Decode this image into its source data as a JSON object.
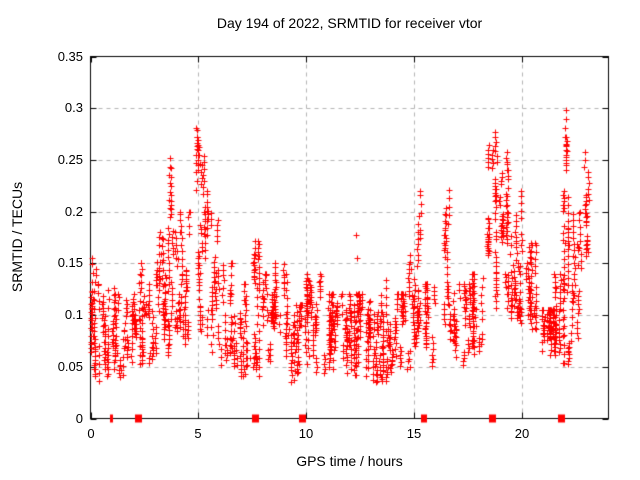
{
  "chart_data": {
    "type": "scatter",
    "title": "Day 194 of 2022, SRMTID for receiver vtor",
    "xlabel": "GPS time / hours",
    "ylabel": "SRMTID / TECUs",
    "xlim": [
      0,
      24
    ],
    "ylim": [
      0,
      0.35
    ],
    "xticks": [
      0,
      5,
      10,
      15,
      20
    ],
    "xtick_labels": [
      "0",
      "5",
      "10",
      "15",
      "20"
    ],
    "yticks": [
      0,
      0.05,
      0.1,
      0.15,
      0.2,
      0.25,
      0.3,
      0.35
    ],
    "ytick_labels": [
      "0",
      "0.05",
      "0.1",
      "0.15",
      "0.2",
      "0.25",
      "0.3",
      "0.35"
    ],
    "grid": "dashed-gray-at-major-ticks",
    "legend": "none",
    "marker": "plus-cross",
    "marker_color": "#ff0000",
    "grid_color": "#b4b4b4",
    "axis_color": "#000000",
    "background": "#ffffff",
    "seed": 194,
    "cluster_format": [
      "center_hour",
      "x_spread_hours",
      "point_count",
      "y_min_TECU",
      "y_max_TECU",
      "density_bias"
    ],
    "point_clusters": [
      [
        0.12,
        0.12,
        55,
        0.04,
        0.155,
        1.2
      ],
      [
        0.7,
        0.45,
        70,
        0.03,
        0.13,
        1.3
      ],
      [
        1.6,
        0.5,
        80,
        0.04,
        0.12,
        1.3
      ],
      [
        2.5,
        0.45,
        75,
        0.05,
        0.15,
        1.3
      ],
      [
        3.3,
        0.35,
        75,
        0.06,
        0.18,
        1.2
      ],
      [
        3.8,
        0.22,
        55,
        0.08,
        0.275,
        1.1
      ],
      [
        4.35,
        0.3,
        65,
        0.07,
        0.2,
        1.2
      ],
      [
        5.1,
        0.22,
        75,
        0.08,
        0.3,
        1.1
      ],
      [
        5.65,
        0.28,
        55,
        0.06,
        0.22,
        1.3
      ],
      [
        6.3,
        0.4,
        65,
        0.05,
        0.15,
        1.3
      ],
      [
        7.0,
        0.3,
        50,
        0.04,
        0.13,
        1.3
      ],
      [
        7.6,
        0.22,
        55,
        0.04,
        0.175,
        1.2
      ],
      [
        8.2,
        0.3,
        50,
        0.05,
        0.14,
        1.3
      ],
      [
        8.8,
        0.3,
        55,
        0.05,
        0.15,
        1.3
      ],
      [
        9.5,
        0.4,
        70,
        0.035,
        0.11,
        1.25
      ],
      [
        10.3,
        0.4,
        80,
        0.04,
        0.14,
        1.3
      ],
      [
        11.1,
        0.4,
        80,
        0.04,
        0.12,
        1.3
      ],
      [
        11.9,
        0.4,
        80,
        0.04,
        0.12,
        1.3
      ],
      [
        12.6,
        0.4,
        75,
        0.04,
        0.12,
        1.3
      ],
      [
        13.4,
        0.4,
        80,
        0.035,
        0.15,
        1.35
      ],
      [
        14.2,
        0.4,
        70,
        0.04,
        0.12,
        1.3
      ],
      [
        14.95,
        0.25,
        50,
        0.04,
        0.18,
        1.35
      ],
      [
        15.2,
        0.12,
        25,
        0.08,
        0.22,
        1.0
      ],
      [
        15.8,
        0.3,
        50,
        0.05,
        0.13,
        1.3
      ],
      [
        16.5,
        0.18,
        45,
        0.07,
        0.25,
        1.35
      ],
      [
        17.2,
        0.4,
        60,
        0.05,
        0.13,
        1.3
      ],
      [
        17.9,
        0.3,
        55,
        0.06,
        0.14,
        1.25
      ],
      [
        18.6,
        0.22,
        70,
        0.09,
        0.3,
        1.1
      ],
      [
        19.15,
        0.22,
        60,
        0.1,
        0.26,
        1.15
      ],
      [
        19.7,
        0.28,
        70,
        0.08,
        0.22,
        1.2
      ],
      [
        20.35,
        0.3,
        60,
        0.08,
        0.17,
        1.2
      ],
      [
        21.2,
        0.32,
        85,
        0.055,
        0.105,
        1.0
      ],
      [
        21.65,
        0.18,
        40,
        0.06,
        0.14,
        1.2
      ],
      [
        22.05,
        0.18,
        80,
        0.05,
        0.31,
        1.15
      ],
      [
        22.5,
        0.22,
        50,
        0.06,
        0.2,
        1.3
      ],
      [
        22.95,
        0.12,
        32,
        0.1,
        0.27,
        1.0
      ]
    ],
    "outlier_points": [
      [
        12.3,
        0.177
      ],
      [
        12.33,
        0.155
      ]
    ],
    "zero_axis_marks": [
      {
        "x": 0.93,
        "style": "thin"
      },
      {
        "x": 2.2,
        "style": "block"
      },
      {
        "x": 7.6,
        "style": "block"
      },
      {
        "x": 9.8,
        "style": "block"
      },
      {
        "x": 15.35,
        "style": "thin"
      },
      {
        "x": 15.5,
        "style": "thin"
      },
      {
        "x": 18.6,
        "style": "block"
      },
      {
        "x": 21.8,
        "style": "block"
      }
    ]
  }
}
